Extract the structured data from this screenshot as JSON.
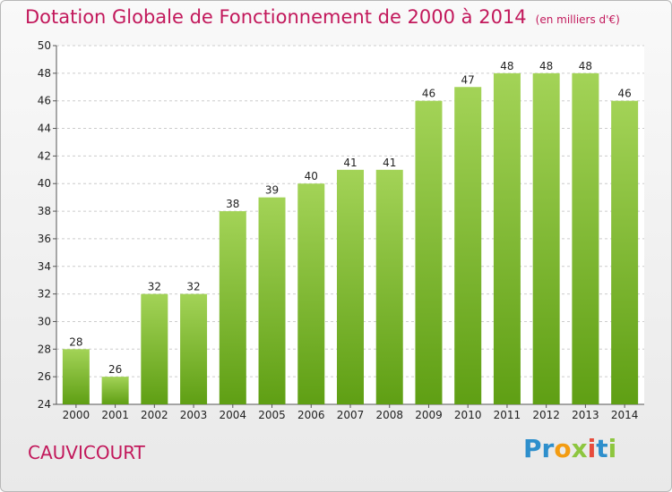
{
  "title": "Dotation Globale de Fonctionnement de 2000 à 2014",
  "subtitle": "(en milliers d'€)",
  "commune": "CAUVICOURT",
  "logo": {
    "letters": [
      "P",
      "r",
      "o",
      "x",
      "i",
      "t",
      "i"
    ]
  },
  "colors": {
    "title": "#c2185b",
    "bar_light": "#a3d357",
    "bar_dark": "#5f9f14",
    "grid": "#cccccc",
    "logo": [
      "#2e8fcc",
      "#2e8fcc",
      "#f39c12",
      "#8dc63f",
      "#e74c3c",
      "#2e8fcc",
      "#8dc63f"
    ]
  },
  "chart_data": {
    "type": "bar",
    "categories": [
      "2000",
      "2001",
      "2002",
      "2003",
      "2004",
      "2005",
      "2006",
      "2007",
      "2008",
      "2009",
      "2010",
      "2011",
      "2012",
      "2013",
      "2014"
    ],
    "values": [
      28,
      26,
      32,
      32,
      38,
      39,
      40,
      41,
      41,
      46,
      47,
      48,
      48,
      48,
      46
    ],
    "ylim": [
      24,
      50
    ],
    "yticks": [
      24,
      26,
      28,
      30,
      32,
      34,
      36,
      38,
      40,
      42,
      44,
      46,
      48,
      50
    ],
    "grid": true,
    "data_labels": true
  }
}
